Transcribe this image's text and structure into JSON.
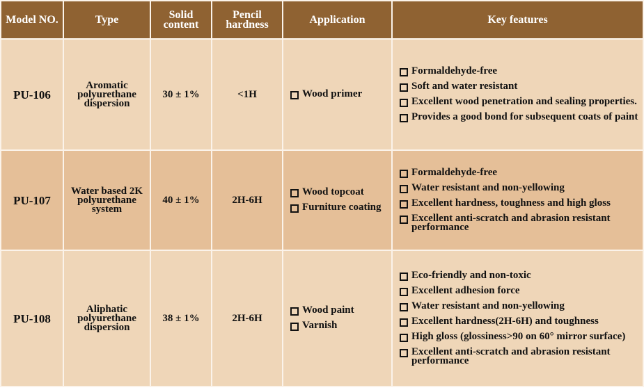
{
  "headers": [
    "Model NO.",
    "Type",
    "Solid content",
    "Pencil hardness",
    "Application",
    "Key features"
  ],
  "rows": [
    {
      "model": "PU-106",
      "type": "Aromatic polyurethane dispersion",
      "solid": "30 ± 1%",
      "hardness": "<1H",
      "applications": [
        "Wood primer"
      ],
      "features": [
        "Formaldehyde-free",
        "Soft and water resistant",
        "Excellent wood penetration and sealing properties.",
        "Provides a good bond for subsequent coats of paint"
      ]
    },
    {
      "model": "PU-107",
      "type": "Water based 2K polyurethane system",
      "solid": "40 ± 1%",
      "hardness": "2H-6H",
      "applications": [
        "Wood topcoat",
        "Furniture coating"
      ],
      "features": [
        "Formaldehyde-free",
        "Water resistant and non-yellowing",
        "Excellent hardness, toughness and high gloss",
        "Excellent anti-scratch and abrasion resistant performance"
      ]
    },
    {
      "model": "PU-108",
      "type": "Aliphatic polyurethane dispersion",
      "solid": "38 ± 1%",
      "hardness": "2H-6H",
      "applications": [
        "Wood paint",
        "Varnish"
      ],
      "features": [
        "Eco-friendly and non-toxic",
        "Excellent adhesion force",
        "Water resistant and non-yellowing",
        "Excellent hardness(2H-6H) and toughness",
        "High gloss (glossiness>90 on 60° mirror surface)",
        "Excellent anti-scratch and abrasion resistant performance"
      ]
    }
  ]
}
